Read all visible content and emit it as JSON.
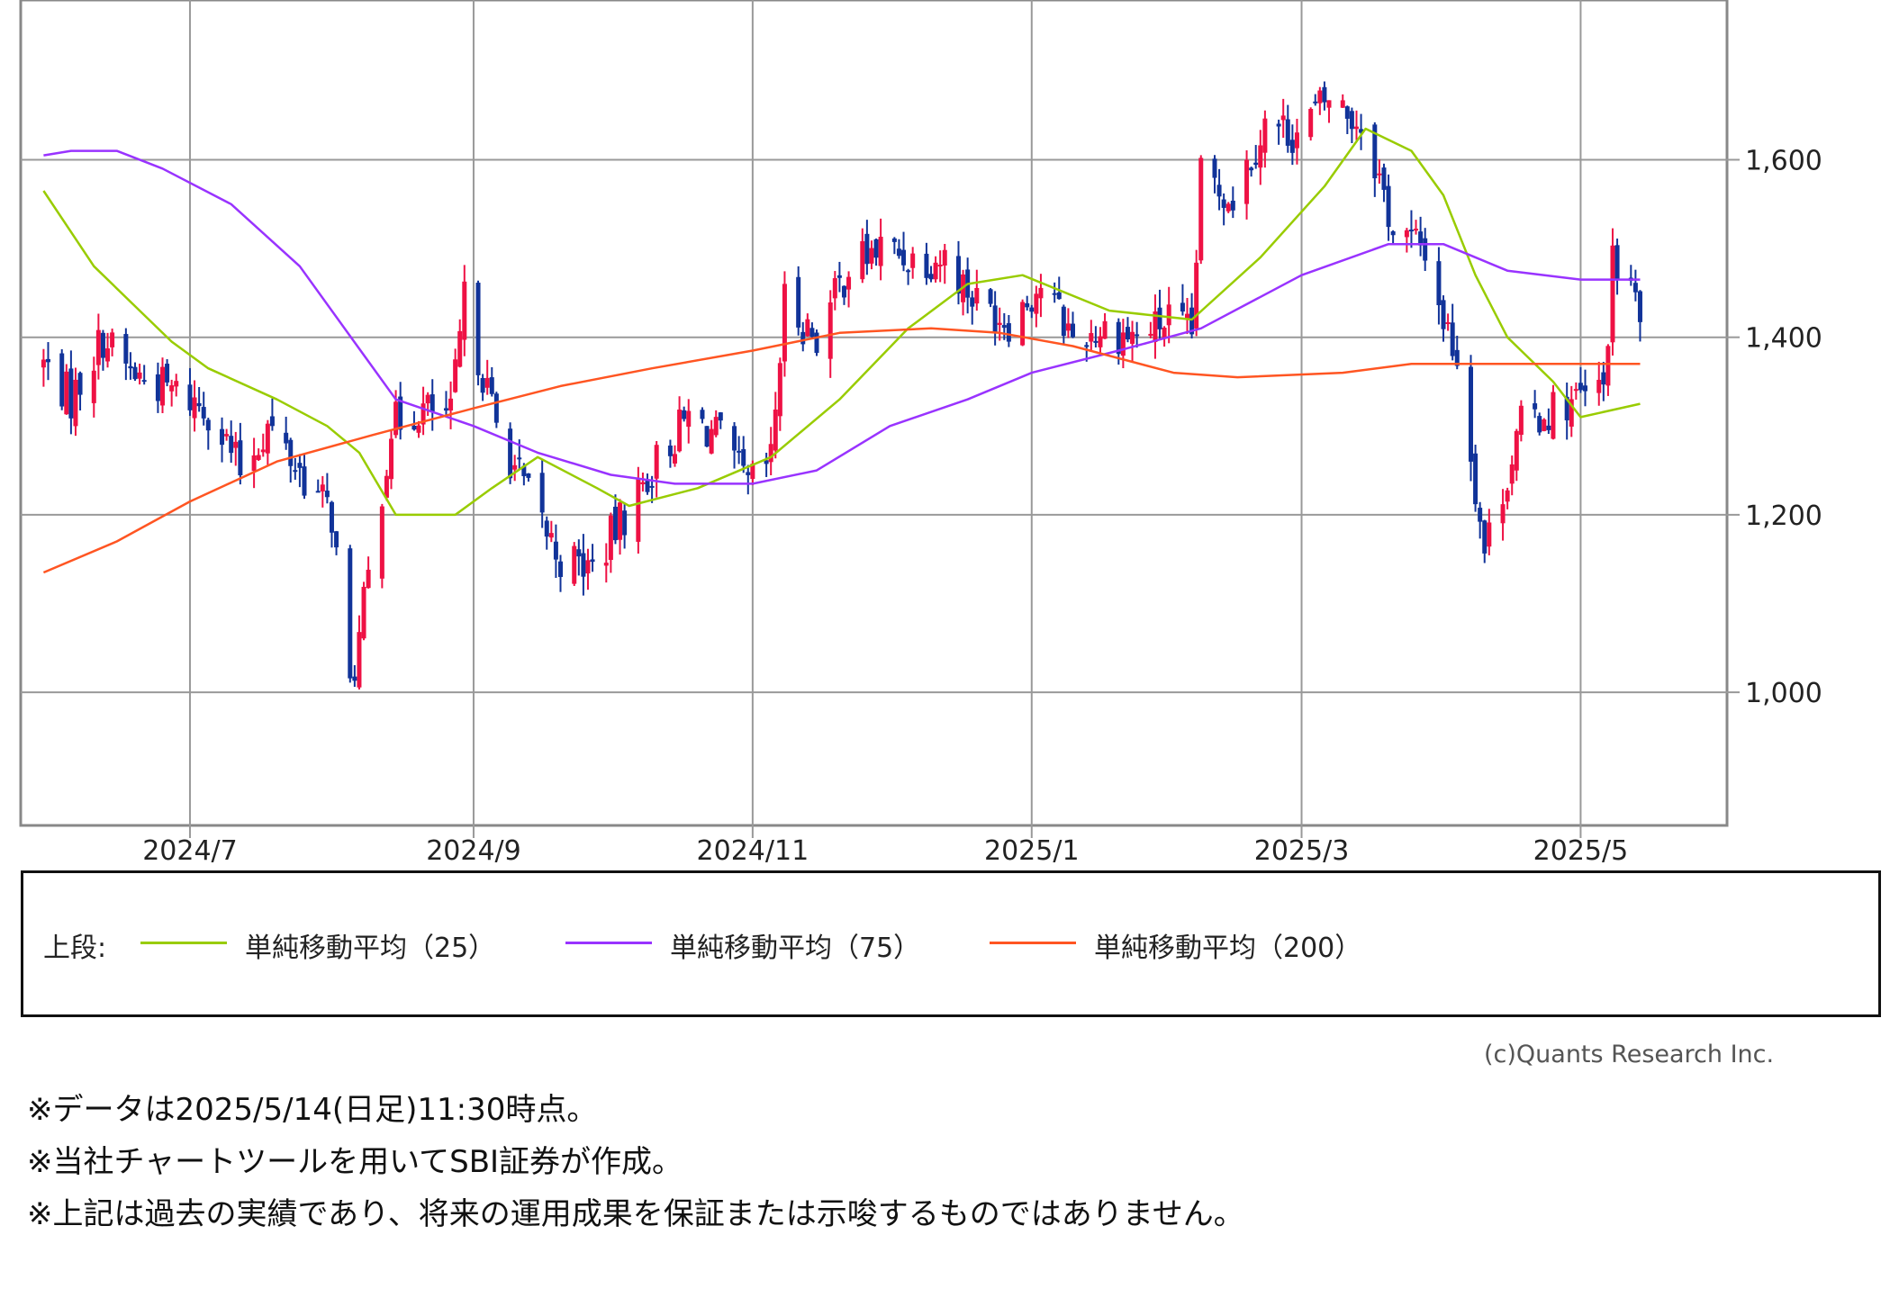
{
  "chart_data": {
    "type": "candlestick",
    "ylim": [
      850,
      1780
    ],
    "y_ticks": [
      1000,
      1200,
      1400,
      1600
    ],
    "y_tick_labels": [
      "1,000",
      "1,200",
      "1,400",
      "1,600"
    ],
    "x_range": [
      "2024-05-25",
      "2025-06-02"
    ],
    "x_ticks": [
      "2024-07-01",
      "2024-09-01",
      "2024-11-01",
      "2025-01-01",
      "2025-03-01",
      "2025-05-01"
    ],
    "x_tick_labels": [
      "2024/7",
      "2024/9",
      "2024/11",
      "2025/1",
      "2025/3",
      "2025/5"
    ],
    "grid": true,
    "price_anchors": [
      [
        "2024-05-30",
        1370
      ],
      [
        "2024-06-05",
        1330
      ],
      [
        "2024-06-12",
        1400
      ],
      [
        "2024-06-18",
        1360
      ],
      [
        "2024-06-25",
        1345
      ],
      [
        "2024-07-05",
        1320
      ],
      [
        "2024-07-12",
        1250
      ],
      [
        "2024-07-18",
        1300
      ],
      [
        "2024-07-25",
        1250
      ],
      [
        "2024-08-01",
        1200
      ],
      [
        "2024-08-05",
        1000
      ],
      [
        "2024-08-07",
        1060
      ],
      [
        "2024-08-14",
        1300
      ],
      [
        "2024-08-20",
        1320
      ],
      [
        "2024-08-27",
        1310
      ],
      [
        "2024-08-30",
        1440
      ],
      [
        "2024-09-06",
        1300
      ],
      [
        "2024-09-13",
        1220
      ],
      [
        "2024-09-20",
        1150
      ],
      [
        "2024-09-27",
        1140
      ],
      [
        "2024-10-04",
        1200
      ],
      [
        "2024-10-11",
        1260
      ],
      [
        "2024-10-18",
        1310
      ],
      [
        "2024-10-24",
        1290
      ],
      [
        "2024-10-31",
        1230
      ],
      [
        "2024-11-05",
        1260
      ],
      [
        "2024-11-08",
        1440
      ],
      [
        "2024-11-15",
        1400
      ],
      [
        "2024-11-22",
        1480
      ],
      [
        "2024-11-29",
        1500
      ],
      [
        "2024-12-06",
        1490
      ],
      [
        "2024-12-13",
        1490
      ],
      [
        "2024-12-20",
        1440
      ],
      [
        "2024-12-27",
        1420
      ],
      [
        "2025-01-03",
        1460
      ],
      [
        "2025-01-10",
        1400
      ],
      [
        "2025-01-17",
        1410
      ],
      [
        "2025-01-24",
        1400
      ],
      [
        "2025-01-31",
        1420
      ],
      [
        "2025-02-05",
        1400
      ],
      [
        "2025-02-07",
        1580
      ],
      [
        "2025-02-14",
        1560
      ],
      [
        "2025-02-21",
        1640
      ],
      [
        "2025-02-28",
        1630
      ],
      [
        "2025-03-07",
        1670
      ],
      [
        "2025-03-14",
        1640
      ],
      [
        "2025-03-17",
        1600
      ],
      [
        "2025-03-21",
        1520
      ],
      [
        "2025-03-28",
        1500
      ],
      [
        "2025-04-01",
        1420
      ],
      [
        "2025-04-04",
        1380
      ],
      [
        "2025-04-07",
        1270
      ],
      [
        "2025-04-10",
        1160
      ],
      [
        "2025-04-14",
        1230
      ],
      [
        "2025-04-18",
        1300
      ],
      [
        "2025-04-25",
        1320
      ],
      [
        "2025-05-01",
        1330
      ],
      [
        "2025-05-06",
        1340
      ],
      [
        "2025-05-08",
        1480
      ],
      [
        "2025-05-12",
        1460
      ],
      [
        "2025-05-14",
        1410
      ]
    ],
    "series": [
      {
        "name": "単純移動平均（25）",
        "color": "#99cc00",
        "points": [
          [
            "2024-05-30",
            1565
          ],
          [
            "2024-06-10",
            1480
          ],
          [
            "2024-06-20",
            1430
          ],
          [
            "2024-06-27",
            1395
          ],
          [
            "2024-07-05",
            1365
          ],
          [
            "2024-07-20",
            1330
          ],
          [
            "2024-07-31",
            1300
          ],
          [
            "2024-08-07",
            1270
          ],
          [
            "2024-08-15",
            1200
          ],
          [
            "2024-08-28",
            1200
          ],
          [
            "2024-09-05",
            1230
          ],
          [
            "2024-09-15",
            1265
          ],
          [
            "2024-09-28",
            1230
          ],
          [
            "2024-10-05",
            1210
          ],
          [
            "2024-10-20",
            1230
          ],
          [
            "2024-11-05",
            1265
          ],
          [
            "2024-11-20",
            1330
          ],
          [
            "2024-12-05",
            1410
          ],
          [
            "2024-12-18",
            1460
          ],
          [
            "2024-12-30",
            1470
          ],
          [
            "2025-01-18",
            1430
          ],
          [
            "2025-02-05",
            1420
          ],
          [
            "2025-02-20",
            1490
          ],
          [
            "2025-03-06",
            1570
          ],
          [
            "2025-03-15",
            1635
          ],
          [
            "2025-03-25",
            1610
          ],
          [
            "2025-04-01",
            1560
          ],
          [
            "2025-04-08",
            1470
          ],
          [
            "2025-04-15",
            1400
          ],
          [
            "2025-04-25",
            1350
          ],
          [
            "2025-05-01",
            1310
          ],
          [
            "2025-05-14",
            1325
          ]
        ]
      },
      {
        "name": "単純移動平均（75）",
        "color": "#9933ff",
        "points": [
          [
            "2024-05-30",
            1605
          ],
          [
            "2024-06-05",
            1610
          ],
          [
            "2024-06-15",
            1610
          ],
          [
            "2024-06-25",
            1590
          ],
          [
            "2024-07-10",
            1550
          ],
          [
            "2024-07-25",
            1480
          ],
          [
            "2024-08-08",
            1380
          ],
          [
            "2024-08-15",
            1330
          ],
          [
            "2024-09-01",
            1300
          ],
          [
            "2024-09-15",
            1270
          ],
          [
            "2024-10-01",
            1245
          ],
          [
            "2024-10-15",
            1235
          ],
          [
            "2024-11-01",
            1235
          ],
          [
            "2024-11-15",
            1250
          ],
          [
            "2024-12-01",
            1300
          ],
          [
            "2024-12-18",
            1330
          ],
          [
            "2025-01-01",
            1360
          ],
          [
            "2025-01-20",
            1385
          ],
          [
            "2025-02-07",
            1410
          ],
          [
            "2025-03-01",
            1470
          ],
          [
            "2025-03-20",
            1505
          ],
          [
            "2025-04-01",
            1505
          ],
          [
            "2025-04-15",
            1475
          ],
          [
            "2025-05-01",
            1465
          ],
          [
            "2025-05-14",
            1465
          ]
        ]
      },
      {
        "name": "単純移動平均（200）",
        "color": "#ff5522",
        "points": [
          [
            "2024-05-30",
            1135
          ],
          [
            "2024-06-15",
            1170
          ],
          [
            "2024-07-01",
            1215
          ],
          [
            "2024-07-20",
            1260
          ],
          [
            "2024-08-10",
            1290
          ],
          [
            "2024-09-01",
            1320
          ],
          [
            "2024-09-20",
            1345
          ],
          [
            "2024-10-10",
            1365
          ],
          [
            "2024-11-01",
            1385
          ],
          [
            "2024-11-20",
            1405
          ],
          [
            "2024-12-10",
            1410
          ],
          [
            "2024-12-25",
            1405
          ],
          [
            "2025-01-10",
            1390
          ],
          [
            "2025-02-01",
            1360
          ],
          [
            "2025-02-15",
            1355
          ],
          [
            "2025-03-10",
            1360
          ],
          [
            "2025-03-25",
            1370
          ],
          [
            "2025-04-15",
            1370
          ],
          [
            "2025-05-14",
            1370
          ]
        ]
      }
    ]
  },
  "legend": {
    "prefix": "上段:",
    "items": [
      "単純移動平均（25）",
      "単純移動平均（75）",
      "単純移動平均（200）"
    ],
    "colors": [
      "#99cc00",
      "#9933ff",
      "#ff5522"
    ]
  },
  "copyright": "(c)Quants Research Inc.",
  "notes": [
    "※データは2025/5/14(日足)11:30時点。",
    "※当社チャートツールを用いてSBI証券が作成。",
    "※上記は過去の実績であり、将来の運用成果を保証または示唆するものではありません。"
  ],
  "colors": {
    "up": "#ee1144",
    "down": "#113399",
    "grid": "#999999",
    "frame": "#888888"
  }
}
